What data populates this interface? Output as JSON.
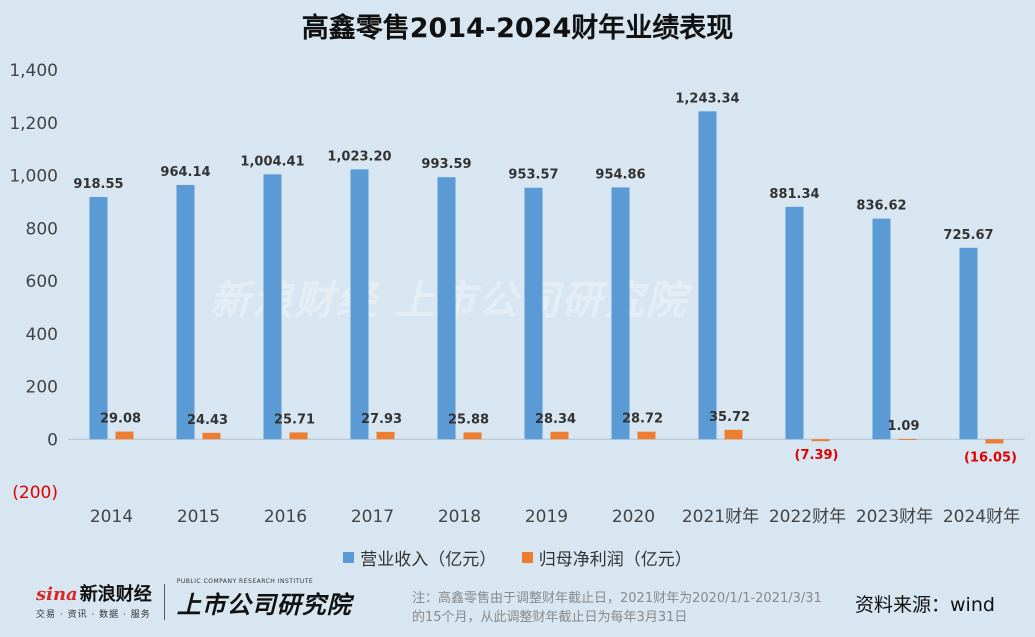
{
  "title": "高鑫零售2014-2024财年业绩表现",
  "chart_data": {
    "type": "bar",
    "categories": [
      "2014",
      "2015",
      "2016",
      "2017",
      "2018",
      "2019",
      "2020",
      "2021财年",
      "2022财年",
      "2023财年",
      "2024财年"
    ],
    "series": [
      {
        "name": "营业收入（亿元）",
        "color": "#5b9bd5",
        "values": [
          918.55,
          964.14,
          1004.41,
          1023.2,
          993.59,
          953.57,
          954.86,
          1243.34,
          881.34,
          836.62,
          725.67
        ],
        "labels": [
          "918.55",
          "964.14",
          "1,004.41",
          "1,023.20",
          "993.59",
          "953.57",
          "954.86",
          "1,243.34",
          "881.34",
          "836.62",
          "725.67"
        ]
      },
      {
        "name": "归母净利润（亿元）",
        "color": "#ed7d31",
        "values": [
          29.08,
          24.43,
          25.71,
          27.93,
          25.88,
          28.34,
          28.72,
          35.72,
          -7.39,
          1.09,
          -16.05
        ],
        "labels": [
          "29.08",
          "24.43",
          "25.71",
          "27.93",
          "25.88",
          "28.34",
          "28.72",
          "35.72",
          "(7.39)",
          "1.09",
          "(16.05)"
        ]
      }
    ],
    "ylim": [
      -200,
      1400
    ],
    "yticks": [
      -200,
      0,
      200,
      400,
      600,
      800,
      1000,
      1200,
      1400
    ],
    "ytick_labels": [
      "(200)",
      "0",
      "200",
      "400",
      "600",
      "800",
      "1,000",
      "1,200",
      "1,400"
    ],
    "negative_label_color": "#e00000",
    "grid": false,
    "legend_position": "bottom"
  },
  "watermark": "新浪财经 上市公司研究院",
  "brand": {
    "sina_en": "sina",
    "sina_cn": "新浪财经",
    "sina_sub": "交易 · 资讯 · 数据 · 服务",
    "institute_en": "PUBLIC COMPANY RESEARCH INSTITUTE",
    "institute_cn": "上市公司研究院"
  },
  "note": "注：高鑫零售由于调整财年截止日，2021财年为2020/1/1-2021/3/31的15个月，从此调整财年截止日为每年3月31日",
  "source": "资料来源：wind"
}
